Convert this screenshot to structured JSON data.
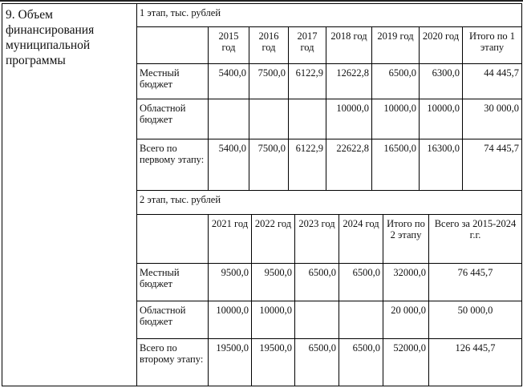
{
  "section_label": "9. Объем финансирования муниципальной программы",
  "stage1": {
    "title": "1 этап, тыс. рублей",
    "headers": [
      "",
      "2015 год",
      "2016 год",
      "2017 год",
      "2018 год",
      "2019 год",
      "2020 год",
      "Итого по 1 этапу"
    ],
    "rows": [
      [
        "Местный бюджет",
        "5400,0",
        "7500,0",
        "6122,9",
        "12622,8",
        "6500,0",
        "6300,0",
        "44 445,7"
      ],
      [
        "Областной бюджет",
        "",
        "",
        "",
        "10000,0",
        "10000,0",
        "10000,0",
        "30 000,0"
      ],
      [
        "Всего по первому этапу:",
        "5400,0",
        "7500,0",
        "6122,9",
        "22622,8",
        "16500,0",
        "16300,0",
        "74 445,7"
      ]
    ]
  },
  "stage2": {
    "title": "2 этап, тыс. рублей",
    "headers": [
      "",
      "2021 год",
      "2022 год",
      "2023 год",
      "2024 год",
      "Итого по 2 этапу",
      "Всего за 2015-2024 г.г."
    ],
    "rows": [
      [
        "Местный бюджет",
        "9500,0",
        "9500,0",
        "6500,0",
        "6500,0",
        "32000,0",
        "76 445,7"
      ],
      [
        "Областной бюджет",
        "10000,0",
        "10000,0",
        "",
        "",
        "20 000,0",
        "50 000,0"
      ],
      [
        "Всего по второму этапу:",
        "19500,0",
        "19500,0",
        "6500,0",
        "6500,0",
        "52000,0",
        "126 445,7"
      ]
    ]
  }
}
